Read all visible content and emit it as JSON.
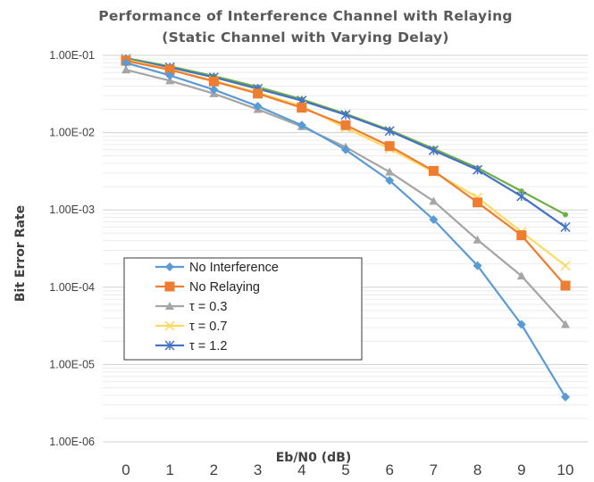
{
  "chart_data": {
    "type": "line",
    "title": "Performance of Interference Channel with Relaying",
    "subtitle": "(Static Channel with Varying Delay)",
    "xlabel": "Eb/N0 (dB)",
    "ylabel": "Bit Error Rate",
    "yscale": "log",
    "ylim": [
      1e-06,
      0.1
    ],
    "xlim": [
      0,
      10
    ],
    "grid": true,
    "legend_position": "left-middle",
    "x": [
      0,
      1,
      2,
      3,
      4,
      5,
      6,
      7,
      8,
      9,
      10
    ],
    "x_tick_labels": [
      "0",
      "1",
      "2",
      "3",
      "4",
      "5",
      "6",
      "7",
      "8",
      "9",
      "10"
    ],
    "y_tick_labels": [
      "1.00E-01",
      "1.00E-02",
      "1.00E-03",
      "1.00E-04",
      "1.00E-05",
      "1.00E-06"
    ],
    "y_tick_values": [
      0.1,
      0.01,
      0.001,
      0.0001,
      1e-05,
      1e-06
    ],
    "series": [
      {
        "name": "No Interference",
        "color": "#5B9BD5",
        "marker": "diamond",
        "values": [
          0.08,
          0.055,
          0.036,
          0.022,
          0.0125,
          0.006,
          0.0024,
          0.00075,
          0.00019,
          3.3e-05,
          3.8e-06
        ]
      },
      {
        "name": "No Relaying",
        "color": "#ED7D31",
        "marker": "square",
        "values": [
          0.085,
          0.065,
          0.046,
          0.032,
          0.021,
          0.0125,
          0.0067,
          0.0032,
          0.00125,
          0.00047,
          0.000105
        ]
      },
      {
        "name": "τ = 0.3",
        "color": "#A5A5A5",
        "marker": "triangle",
        "values": [
          0.065,
          0.047,
          0.032,
          0.02,
          0.012,
          0.0065,
          0.0031,
          0.0013,
          0.00041,
          0.00014,
          3.3e-05
        ]
      },
      {
        "name": "τ = 0.7",
        "color": "#FFD966",
        "marker": "x",
        "values": [
          0.088,
          0.066,
          0.047,
          0.033,
          0.022,
          0.0115,
          0.0062,
          0.0031,
          0.00145,
          0.00052,
          0.00019
        ]
      },
      {
        "name": "τ = 1.2",
        "color": "#4472C4",
        "marker": "star",
        "values": [
          0.09,
          0.07,
          0.052,
          0.037,
          0.026,
          0.017,
          0.0105,
          0.0059,
          0.0033,
          0.0015,
          0.0006
        ]
      },
      {
        "name": "",
        "color": "#70AD47",
        "marker": "circle",
        "values": [
          0.092,
          0.072,
          0.054,
          0.039,
          0.027,
          0.0175,
          0.0108,
          0.0062,
          0.0035,
          0.00175,
          0.00087
        ]
      }
    ]
  }
}
